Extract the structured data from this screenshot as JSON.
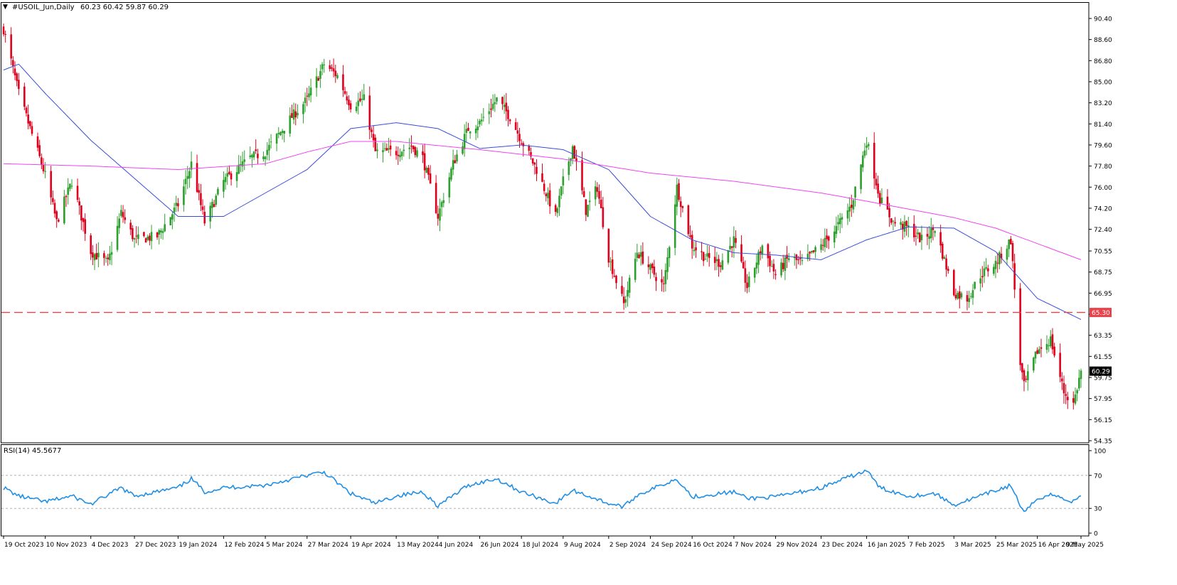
{
  "header": {
    "arrow": "▼",
    "symbol": "#USOIL_Jun,Daily",
    "ohlc": "60.23 60.42 59.87 60.29"
  },
  "rsi_header": "RSI(14) 45.5677",
  "colors": {
    "bull": "#2ca02c",
    "bear": "#e0001b",
    "ma_fast": "#3a4bd8",
    "ma_slow": "#ee44ee",
    "level": "#e8434a",
    "rsi": "#1f8fe6",
    "axis": "#000000",
    "current_tag": "#000000"
  },
  "chart_data": [
    {
      "type": "line",
      "title": "#USOIL_Jun,Daily",
      "grid": false,
      "ylim": [
        53.5,
        91.5
      ],
      "y_ticks": [
        "90.40",
        "88.60",
        "86.80",
        "85.00",
        "83.20",
        "81.40",
        "79.60",
        "77.80",
        "76.00",
        "74.20",
        "72.40",
        "70.55",
        "68.75",
        "66.95",
        "65.15",
        "63.35",
        "61.55",
        "59.75",
        "57.95",
        "56.15",
        "54.35"
      ],
      "x_ticks": [
        "19 Oct 2023",
        "10 Nov 2023",
        "4 Dec 2023",
        "27 Dec 2023",
        "19 Jan 2024",
        "12 Feb 2024",
        "5 Mar 2024",
        "27 Mar 2024",
        "19 Apr 2024",
        "13 May 2024",
        "4 Jun 2024",
        "26 Jun 2024",
        "18 Jul 2024",
        "9 Aug 2024",
        "2 Sep 2024",
        "24 Sep 2024",
        "16 Oct 2024",
        "7 Nov 2024",
        "29 Nov 2024",
        "23 Dec 2024",
        "16 Jan 2025",
        "7 Feb 2025",
        "3 Mar 2025",
        "25 Mar 2025",
        "16 Apr 2025",
        "9 May 2025"
      ],
      "close_path": [
        [
          "19 Oct 2023",
          89.5
        ],
        [
          "27 Oct 2023",
          84.0
        ],
        [
          "10 Nov 2023",
          77.0
        ],
        [
          "16 Nov 2023",
          73.0
        ],
        [
          "24 Nov 2023",
          76.5
        ],
        [
          "4 Dec 2023",
          70.5
        ],
        [
          "13 Dec 2023",
          69.5
        ],
        [
          "20 Dec 2023",
          73.8
        ],
        [
          "27 Dec 2023",
          71.5
        ],
        [
          "8 Jan 2024",
          71.8
        ],
        [
          "19 Jan 2024",
          74.5
        ],
        [
          "26 Jan 2024",
          78.0
        ],
        [
          "2 Feb 2024",
          73.0
        ],
        [
          "12 Feb 2024",
          76.5
        ],
        [
          "26 Feb 2024",
          78.5
        ],
        [
          "5 Mar 2024",
          79.0
        ],
        [
          "19 Mar 2024",
          82.0
        ],
        [
          "27 Mar 2024",
          83.5
        ],
        [
          "5 Apr 2024",
          86.5
        ],
        [
          "12 Apr 2024",
          85.5
        ],
        [
          "19 Apr 2024",
          83.0
        ],
        [
          "26 Apr 2024",
          83.5
        ],
        [
          "2 May 2024",
          79.0
        ],
        [
          "13 May 2024",
          79.0
        ],
        [
          "21 May 2024",
          79.5
        ],
        [
          "27 May 2024",
          78.5
        ],
        [
          "4 Jun 2024",
          73.5
        ],
        [
          "12 Jun 2024",
          78.0
        ],
        [
          "20 Jun 2024",
          81.0
        ],
        [
          "26 Jun 2024",
          81.5
        ],
        [
          "5 Jul 2024",
          83.5
        ],
        [
          "12 Jul 2024",
          82.0
        ],
        [
          "18 Jul 2024",
          80.0
        ],
        [
          "26 Jul 2024",
          77.5
        ],
        [
          "5 Aug 2024",
          73.5
        ],
        [
          "9 Aug 2024",
          76.5
        ],
        [
          "14 Aug 2024",
          79.5
        ],
        [
          "21 Aug 2024",
          74.0
        ],
        [
          "27 Aug 2024",
          76.0
        ],
        [
          "2 Sep 2024",
          70.0
        ],
        [
          "10 Sep 2024",
          66.0
        ],
        [
          "17 Sep 2024",
          70.5
        ],
        [
          "24 Sep 2024",
          69.0
        ],
        [
          "1 Oct 2024",
          67.5
        ],
        [
          "8 Oct 2024",
          76.0
        ],
        [
          "16 Oct 2024",
          71.0
        ],
        [
          "23 Oct 2024",
          70.0
        ],
        [
          "31 Oct 2024",
          69.5
        ],
        [
          "7 Nov 2024",
          71.5
        ],
        [
          "14 Nov 2024",
          67.5
        ],
        [
          "22 Nov 2024",
          71.0
        ],
        [
          "29 Nov 2024",
          68.5
        ],
        [
          "6 Dec 2024",
          70.0
        ],
        [
          "13 Dec 2024",
          69.5
        ],
        [
          "23 Dec 2024",
          71.0
        ],
        [
          "31 Dec 2024",
          72.5
        ],
        [
          "8 Jan 2025",
          74.5
        ],
        [
          "16 Jan 2025",
          80.0
        ],
        [
          "23 Jan 2025",
          75.0
        ],
        [
          "30 Jan 2025",
          73.0
        ],
        [
          "7 Feb 2025",
          72.5
        ],
        [
          "14 Feb 2025",
          71.5
        ],
        [
          "21 Feb 2025",
          72.5
        ],
        [
          "3 Mar 2025",
          67.0
        ],
        [
          "10 Mar 2025",
          66.5
        ],
        [
          "17 Mar 2025",
          68.5
        ],
        [
          "25 Mar 2025",
          69.5
        ],
        [
          "2 Apr 2025",
          71.5
        ],
        [
          "7 Apr 2025",
          61.0
        ],
        [
          "9 Apr 2025",
          59.0
        ],
        [
          "16 Apr 2025",
          62.0
        ],
        [
          "23 Apr 2025",
          63.0
        ],
        [
          "30 Apr 2025",
          58.5
        ],
        [
          "5 May 2025",
          57.5
        ],
        [
          "9 May 2025",
          60.29
        ]
      ],
      "series": [
        {
          "name": "MA fast",
          "points": [
            [
              "19 Oct 2023",
              86.0
            ],
            [
              "27 Oct 2023",
              86.5
            ],
            [
              "10 Nov 2023",
              84.0
            ],
            [
              "4 Dec 2023",
              80.0
            ],
            [
              "19 Jan 2024",
              73.5
            ],
            [
              "12 Feb 2024",
              73.5
            ],
            [
              "5 Mar 2024",
              75.5
            ],
            [
              "27 Mar 2024",
              77.5
            ],
            [
              "19 Apr 2024",
              81.0
            ],
            [
              "13 May 2024",
              81.5
            ],
            [
              "4 Jun 2024",
              81.0
            ],
            [
              "26 Jun 2024",
              79.3
            ],
            [
              "18 Jul 2024",
              79.6
            ],
            [
              "9 Aug 2024",
              79.2
            ],
            [
              "2 Sep 2024",
              77.5
            ],
            [
              "24 Sep 2024",
              73.5
            ],
            [
              "16 Oct 2024",
              71.5
            ],
            [
              "7 Nov 2024",
              70.4
            ],
            [
              "29 Nov 2024",
              70.2
            ],
            [
              "23 Dec 2024",
              69.8
            ],
            [
              "16 Jan 2025",
              71.5
            ],
            [
              "7 Feb 2025",
              72.6
            ],
            [
              "3 Mar 2025",
              72.5
            ],
            [
              "25 Mar 2025",
              70.5
            ],
            [
              "16 Apr 2025",
              66.5
            ],
            [
              "9 May 2025",
              64.7
            ]
          ]
        },
        {
          "name": "MA slow",
          "points": [
            [
              "19 Oct 2023",
              78.0
            ],
            [
              "4 Dec 2023",
              77.8
            ],
            [
              "19 Jan 2024",
              77.5
            ],
            [
              "5 Mar 2024",
              78.0
            ],
            [
              "27 Mar 2024",
              79.0
            ],
            [
              "19 Apr 2024",
              79.9
            ],
            [
              "13 May 2024",
              79.9
            ],
            [
              "26 Jun 2024",
              79.2
            ],
            [
              "9 Aug 2024",
              78.4
            ],
            [
              "24 Sep 2024",
              77.2
            ],
            [
              "7 Nov 2024",
              76.5
            ],
            [
              "23 Dec 2024",
              75.5
            ],
            [
              "16 Jan 2025",
              74.8
            ],
            [
              "3 Mar 2025",
              73.4
            ],
            [
              "25 Mar 2025",
              72.5
            ],
            [
              "9 May 2025",
              69.8
            ]
          ]
        }
      ],
      "horizontal_line": {
        "value": 65.3,
        "label": "65.30"
      },
      "current_price": {
        "value": 60.29,
        "label": "60.29"
      }
    },
    {
      "type": "line",
      "title": "RSI(14) 45.5677",
      "ylim": [
        0,
        100
      ],
      "y_ticks": [
        "100",
        "70",
        "30",
        "0"
      ],
      "levels": [
        70,
        30
      ],
      "series": [
        {
          "name": "RSI(14)",
          "points": [
            [
              "19 Oct 2023",
              55
            ],
            [
              "27 Oct 2023",
              45
            ],
            [
              "10 Nov 2023",
              38
            ],
            [
              "24 Nov 2023",
              45
            ],
            [
              "4 Dec 2023",
              35
            ],
            [
              "20 Dec 2023",
              55
            ],
            [
              "27 Dec 2023",
              45
            ],
            [
              "19 Jan 2024",
              55
            ],
            [
              "26 Jan 2024",
              66
            ],
            [
              "2 Feb 2024",
              50
            ],
            [
              "12 Feb 2024",
              55
            ],
            [
              "5 Mar 2024",
              58
            ],
            [
              "27 Mar 2024",
              70
            ],
            [
              "5 Apr 2024",
              74
            ],
            [
              "19 Apr 2024",
              48
            ],
            [
              "2 May 2024",
              36
            ],
            [
              "13 May 2024",
              45
            ],
            [
              "27 May 2024",
              50
            ],
            [
              "4 Jun 2024",
              33
            ],
            [
              "20 Jun 2024",
              58
            ],
            [
              "5 Jul 2024",
              66
            ],
            [
              "18 Jul 2024",
              50
            ],
            [
              "5 Aug 2024",
              36
            ],
            [
              "14 Aug 2024",
              52
            ],
            [
              "2 Sep 2024",
              36
            ],
            [
              "10 Sep 2024",
              32
            ],
            [
              "17 Sep 2024",
              46
            ],
            [
              "8 Oct 2024",
              66
            ],
            [
              "16 Oct 2024",
              44
            ],
            [
              "7 Nov 2024",
              50
            ],
            [
              "14 Nov 2024",
              42
            ],
            [
              "29 Nov 2024",
              44
            ],
            [
              "23 Dec 2024",
              55
            ],
            [
              "16 Jan 2025",
              76
            ],
            [
              "23 Jan 2025",
              55
            ],
            [
              "7 Feb 2025",
              45
            ],
            [
              "21 Feb 2025",
              48
            ],
            [
              "3 Mar 2025",
              34
            ],
            [
              "17 Mar 2025",
              45
            ],
            [
              "2 Apr 2025",
              58
            ],
            [
              "9 Apr 2025",
              24
            ],
            [
              "16 Apr 2025",
              42
            ],
            [
              "23 Apr 2025",
              47
            ],
            [
              "5 May 2025",
              38
            ],
            [
              "9 May 2025",
              45.57
            ]
          ]
        }
      ]
    }
  ]
}
